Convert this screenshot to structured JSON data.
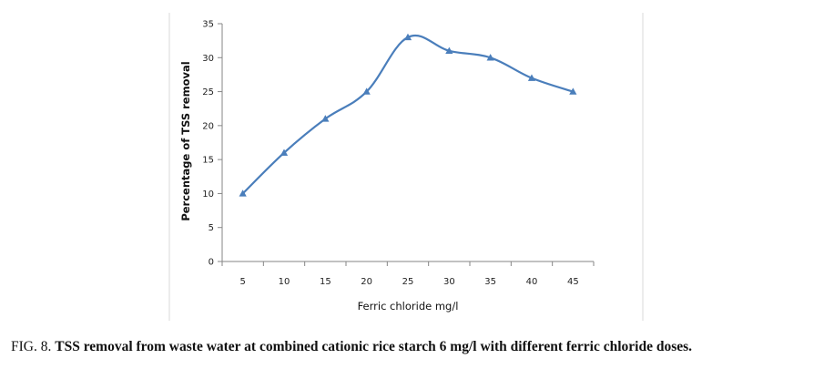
{
  "chart_data": {
    "type": "line",
    "x": [
      5,
      10,
      15,
      20,
      25,
      30,
      35,
      40,
      45
    ],
    "series": [
      {
        "values": [
          10,
          16,
          21,
          25,
          33,
          31,
          30,
          27,
          25
        ],
        "color": "#4a7ebb",
        "marker": "triangle"
      }
    ],
    "xlabel": "Ferric chloride mg/l",
    "ylabel": "Percentage of TSS removal",
    "ylim": [
      0,
      35
    ],
    "yticks": [
      0,
      5,
      10,
      15,
      20,
      25,
      30,
      35
    ],
    "xticks": [
      5,
      10,
      15,
      20,
      25,
      30,
      35,
      40,
      45
    ],
    "grid": false,
    "legend": "none"
  },
  "caption": {
    "label": "FIG. 8.",
    "text": "TSS removal from waste water at combined cationic rice starch 6 mg/l with different ferric chloride doses."
  }
}
